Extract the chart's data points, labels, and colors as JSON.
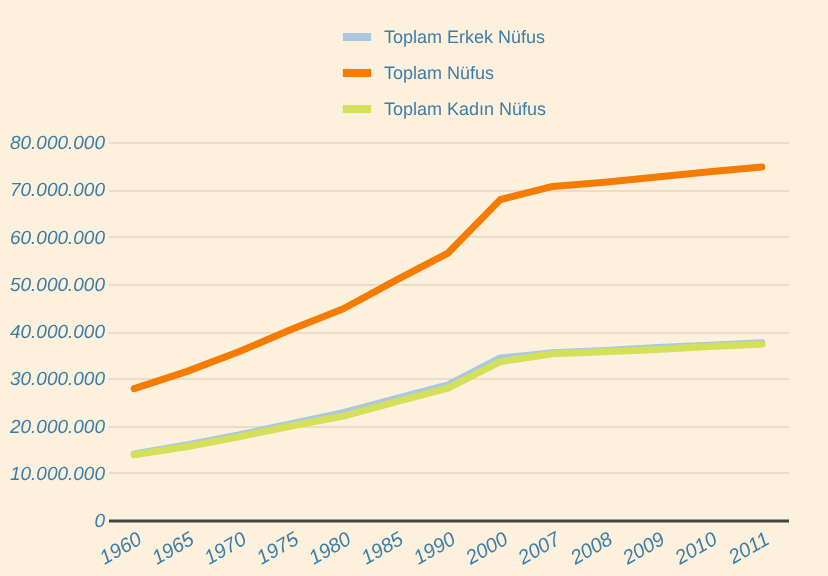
{
  "chart_data": {
    "type": "line",
    "categories": [
      "1960",
      "1965",
      "1970",
      "1975",
      "1980",
      "1985",
      "1990",
      "2000",
      "2007",
      "2008",
      "2009",
      "2010",
      "2011"
    ],
    "series": [
      {
        "name": "Toplam Erkek Nüfus",
        "color": "#a9c9e2",
        "values": [
          14000000,
          15900000,
          18000000,
          20400000,
          22700000,
          25700000,
          28600000,
          34300000,
          35400000,
          35900000,
          36500000,
          37000000,
          37500000
        ]
      },
      {
        "name": "Toplam Nüfus",
        "color": "#f57c00",
        "values": [
          27800000,
          31400000,
          35600000,
          40300000,
          44700000,
          50700000,
          56500000,
          67800000,
          70600000,
          71500000,
          72600000,
          73700000,
          74700000
        ]
      },
      {
        "name": "Toplam Kadın Nüfus",
        "color": "#d4df5a",
        "values": [
          13800000,
          15500000,
          17600000,
          19900000,
          22000000,
          25000000,
          27900000,
          33500000,
          35200000,
          35600000,
          36100000,
          36700000,
          37200000
        ]
      }
    ],
    "ylim": [
      0,
      80000000
    ],
    "yticks": [
      0,
      {
        "value": 10000000,
        "label": "10.000.000"
      },
      {
        "value": 20000000,
        "label": "20.000.000"
      },
      {
        "value": 30000000,
        "label": "30.000.000"
      },
      {
        "value": 40000000,
        "label": "40.000.000"
      },
      {
        "value": 50000000,
        "label": "50.000.000"
      },
      {
        "value": 60000000,
        "label": "60.000.000"
      },
      {
        "value": 70000000,
        "label": "70.000.000"
      },
      {
        "value": 80000000,
        "label": "80.000.000"
      }
    ],
    "grid": "y",
    "legend": "top",
    "marker": "none",
    "line_style": "solid"
  }
}
